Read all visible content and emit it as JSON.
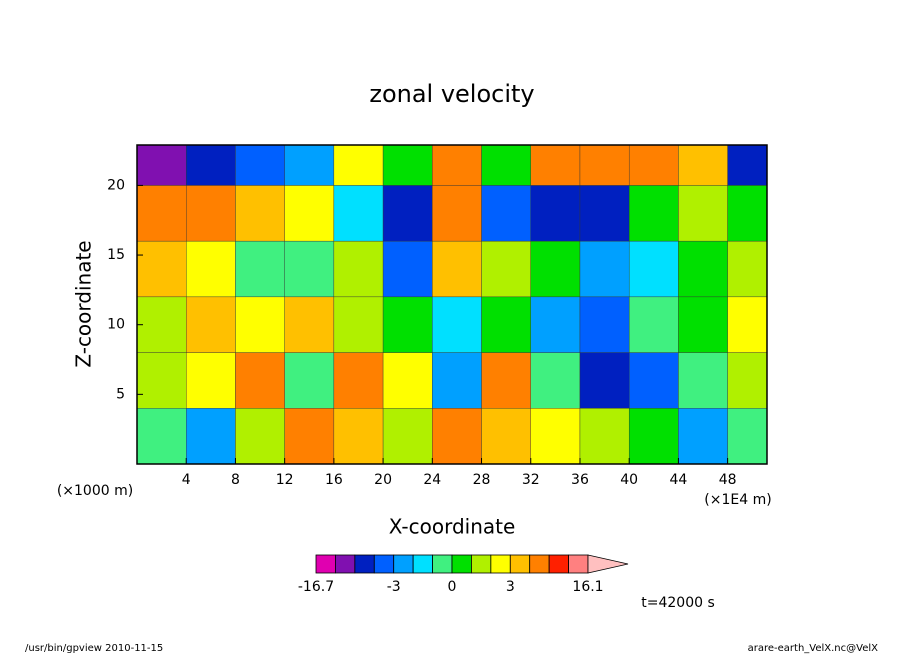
{
  "chart_data": {
    "type": "contour",
    "title": "zonal velocity",
    "x_label": "X-coordinate",
    "y_label": "Z-coordinate",
    "y_unit": "(×1000 m)",
    "x_unit": "(×1E4 m)",
    "time_label": "t=42000 s",
    "footer_left": "/usr/bin/gpview   2010-11-15",
    "footer_right": "arare-earth_VelX.nc@VelX",
    "xlim": [
      0,
      51.2
    ],
    "ylim": [
      0,
      22.9
    ],
    "xticks": [
      4,
      8,
      12,
      16,
      20,
      24,
      28,
      32,
      36,
      40,
      44,
      48
    ],
    "yticks": [
      5,
      10,
      15,
      20
    ],
    "x_edges": [
      0,
      4,
      8,
      12,
      16,
      20,
      24,
      28,
      32,
      36,
      40,
      44,
      48,
      51.2
    ],
    "y_edges": [
      0,
      4,
      8,
      12,
      16,
      20,
      22.9
    ],
    "z": [
      [
        -1,
        -3,
        1,
        4,
        3,
        1,
        4,
        3,
        2,
        1,
        0,
        -3,
        -1
      ],
      [
        1,
        2,
        4,
        -1,
        5,
        2,
        -3,
        4,
        -1,
        -5,
        -4,
        -1,
        1
      ],
      [
        1,
        3,
        2,
        3,
        1,
        0,
        -2,
        0,
        -3,
        -4,
        -1,
        0,
        2
      ],
      [
        3,
        2,
        -1,
        -1,
        1,
        -4,
        3,
        1,
        0,
        -3,
        -2,
        0,
        1
      ],
      [
        4,
        4,
        3,
        2,
        -2,
        -5,
        5,
        -4,
        -5,
        -6,
        0,
        1,
        0
      ],
      [
        -9,
        -7,
        -4,
        -3,
        2,
        0,
        4,
        0,
        4,
        5,
        4,
        3,
        -5
      ]
    ],
    "levels": [
      -16.7,
      -11,
      -7,
      -4,
      -3,
      -2,
      -1,
      0,
      1,
      2,
      3,
      4,
      7,
      11,
      16.1
    ],
    "colors": [
      "#e000b0",
      "#8010b0",
      "#0020c0",
      "#0060ff",
      "#00a0ff",
      "#00e0ff",
      "#40f080",
      "#00e000",
      "#b0f000",
      "#ffff00",
      "#ffc000",
      "#ff8000",
      "#ff2000",
      "#ff8080"
    ],
    "extend_color": "#ffc0c0",
    "colorbar_ticks": [
      -16.7,
      -3,
      0,
      3,
      16.1
    ]
  }
}
